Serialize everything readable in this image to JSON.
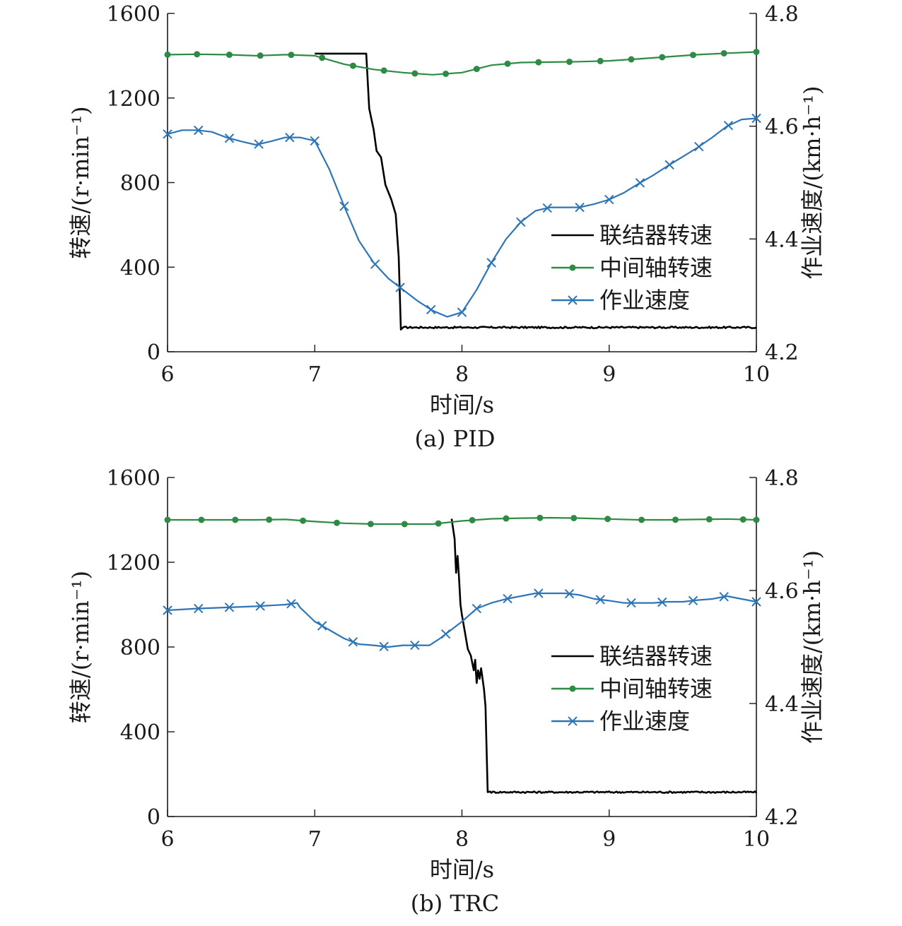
{
  "chart_data": [
    {
      "type": "line",
      "caption": "(a) PID",
      "xlabel": "时间/s",
      "ylabel": "转速/(r·min⁻¹)",
      "ylabel2": "作业速度/(km·h⁻¹)",
      "xlim": [
        6,
        10
      ],
      "ylim": [
        0,
        1600
      ],
      "ylim2": [
        4.2,
        4.8
      ],
      "xticks": [
        "6",
        "7",
        "8",
        "9",
        "10"
      ],
      "yticks": [
        "0",
        "400",
        "800",
        "1200",
        "1600"
      ],
      "yticks2": [
        "4.2",
        "4.4",
        "4.6",
        "4.8"
      ],
      "legend_position": "lower-right",
      "series": [
        {
          "name": "联结器转速",
          "axis": "left",
          "color": "#000000",
          "marker": "none",
          "x": [
            7.0,
            7.35,
            7.37,
            7.4,
            7.42,
            7.45,
            7.48,
            7.52,
            7.55,
            7.57,
            7.585,
            7.6,
            8.0,
            9.0,
            10.0
          ],
          "y": [
            1410,
            1410,
            1150,
            1050,
            950,
            920,
            790,
            720,
            650,
            450,
            105,
            115,
            115,
            115,
            115
          ],
          "noise_after_x": 7.6
        },
        {
          "name": "中间轴转速",
          "axis": "left",
          "color": "#2e8b45",
          "marker": "circle",
          "x": [
            6.0,
            6.2,
            6.4,
            6.6,
            6.8,
            7.0,
            7.2,
            7.4,
            7.6,
            7.8,
            8.0,
            8.2,
            8.4,
            8.6,
            8.8,
            9.0,
            9.2,
            9.4,
            9.6,
            9.8,
            10.0
          ],
          "y": [
            1405,
            1407,
            1405,
            1400,
            1405,
            1400,
            1360,
            1335,
            1320,
            1310,
            1320,
            1355,
            1368,
            1370,
            1372,
            1376,
            1385,
            1395,
            1405,
            1412,
            1418
          ],
          "marker_x": [
            6.0,
            6.2,
            6.42,
            6.63,
            6.84,
            7.05,
            7.26,
            7.47,
            7.68,
            7.89,
            8.1,
            8.31,
            8.52,
            8.73,
            8.94,
            9.15,
            9.36,
            9.57,
            9.78,
            10.0
          ]
        },
        {
          "name": "作业速度",
          "axis": "right",
          "color": "#2e75b6",
          "marker": "x",
          "x": [
            6.0,
            6.1,
            6.2,
            6.3,
            6.4,
            6.5,
            6.6,
            6.7,
            6.8,
            6.9,
            7.0,
            7.1,
            7.2,
            7.3,
            7.4,
            7.5,
            7.6,
            7.7,
            7.8,
            7.9,
            8.0,
            8.1,
            8.2,
            8.3,
            8.4,
            8.5,
            8.6,
            8.7,
            8.8,
            8.9,
            9.0,
            9.1,
            9.2,
            9.3,
            9.4,
            9.5,
            9.6,
            9.7,
            9.8,
            9.9,
            10.0
          ],
          "y": [
            4.586,
            4.593,
            4.593,
            4.59,
            4.58,
            4.573,
            4.567,
            4.573,
            4.58,
            4.58,
            4.574,
            4.523,
            4.458,
            4.397,
            4.358,
            4.33,
            4.31,
            4.29,
            4.273,
            4.262,
            4.27,
            4.31,
            4.358,
            4.4,
            4.43,
            4.45,
            4.456,
            4.456,
            4.456,
            4.462,
            4.47,
            4.482,
            4.498,
            4.513,
            4.53,
            4.546,
            4.562,
            4.58,
            4.6,
            4.612,
            4.614
          ],
          "marker_x": [
            6.0,
            6.21,
            6.42,
            6.62,
            6.83,
            7.0,
            7.2,
            7.41,
            7.58,
            7.79,
            8.0,
            8.2,
            8.4,
            8.58,
            8.8,
            9.0,
            9.21,
            9.41,
            9.61,
            9.81,
            10.0
          ]
        }
      ]
    },
    {
      "type": "line",
      "caption": "(b) TRC",
      "xlabel": "时间/s",
      "ylabel": "转速/(r·min⁻¹)",
      "ylabel2": "作业速度/(km·h⁻¹)",
      "xlim": [
        6,
        10
      ],
      "ylim": [
        0,
        1600
      ],
      "ylim2": [
        4.2,
        4.8
      ],
      "xticks": [
        "6",
        "7",
        "8",
        "9",
        "10"
      ],
      "yticks": [
        "0",
        "400",
        "800",
        "1200",
        "1600"
      ],
      "yticks2": [
        "4.2",
        "4.4",
        "4.6",
        "4.8"
      ],
      "legend_position": "lower-right",
      "series": [
        {
          "name": "联结器转速",
          "axis": "left",
          "color": "#000000",
          "marker": "none",
          "x": [
            7.93,
            7.95,
            7.96,
            7.97,
            7.98,
            7.99,
            8.0,
            8.02,
            8.04,
            8.06,
            8.08,
            8.09,
            8.1,
            8.11,
            8.12,
            8.13,
            8.15,
            8.16,
            8.175,
            8.19,
            8.5,
            9.0,
            10.0
          ],
          "y": [
            1405,
            1310,
            1150,
            1230,
            1130,
            1000,
            950,
            870,
            790,
            760,
            690,
            740,
            630,
            690,
            650,
            700,
            600,
            520,
            115,
            118,
            115,
            115,
            115
          ],
          "noise_after_x": 8.19
        },
        {
          "name": "中间轴转速",
          "axis": "left",
          "color": "#2e8b45",
          "marker": "circle",
          "x": [
            6.0,
            6.2,
            6.4,
            6.6,
            6.8,
            7.0,
            7.2,
            7.4,
            7.6,
            7.8,
            8.0,
            8.2,
            8.4,
            8.6,
            8.8,
            9.0,
            9.2,
            9.4,
            9.6,
            9.8,
            10.0
          ],
          "y": [
            1400,
            1400,
            1400,
            1400,
            1402,
            1392,
            1384,
            1380,
            1380,
            1380,
            1395,
            1405,
            1408,
            1410,
            1408,
            1404,
            1400,
            1400,
            1402,
            1404,
            1400
          ],
          "marker_x": [
            6.0,
            6.23,
            6.46,
            6.69,
            6.92,
            7.15,
            7.38,
            7.61,
            7.84,
            8.07,
            8.3,
            8.53,
            8.76,
            8.99,
            9.22,
            9.45,
            9.68,
            9.91,
            10.0
          ]
        },
        {
          "name": "作业速度",
          "axis": "right",
          "color": "#2e75b6",
          "marker": "x",
          "x": [
            6.0,
            6.2,
            6.4,
            6.6,
            6.8,
            6.88,
            6.9,
            7.0,
            7.1,
            7.2,
            7.3,
            7.4,
            7.5,
            7.6,
            7.7,
            7.78,
            7.85,
            7.9,
            8.0,
            8.1,
            8.2,
            8.3,
            8.4,
            8.5,
            8.6,
            8.7,
            8.8,
            8.9,
            9.0,
            9.1,
            9.2,
            9.3,
            9.4,
            9.5,
            9.6,
            9.7,
            9.8,
            9.9,
            10.0
          ],
          "y": [
            4.565,
            4.568,
            4.57,
            4.572,
            4.575,
            4.578,
            4.57,
            4.545,
            4.53,
            4.515,
            4.505,
            4.503,
            4.5,
            4.503,
            4.503,
            4.503,
            4.515,
            4.525,
            4.545,
            4.568,
            4.578,
            4.585,
            4.59,
            4.595,
            4.595,
            4.595,
            4.592,
            4.585,
            4.582,
            4.578,
            4.578,
            4.578,
            4.58,
            4.58,
            4.583,
            4.585,
            4.59,
            4.585,
            4.58
          ],
          "marker_x": [
            6.0,
            6.21,
            6.42,
            6.63,
            6.84,
            7.05,
            7.26,
            7.47,
            7.68,
            7.89,
            8.1,
            8.31,
            8.52,
            8.73,
            8.94,
            9.15,
            9.36,
            9.57,
            9.78,
            10.0
          ]
        }
      ]
    }
  ]
}
